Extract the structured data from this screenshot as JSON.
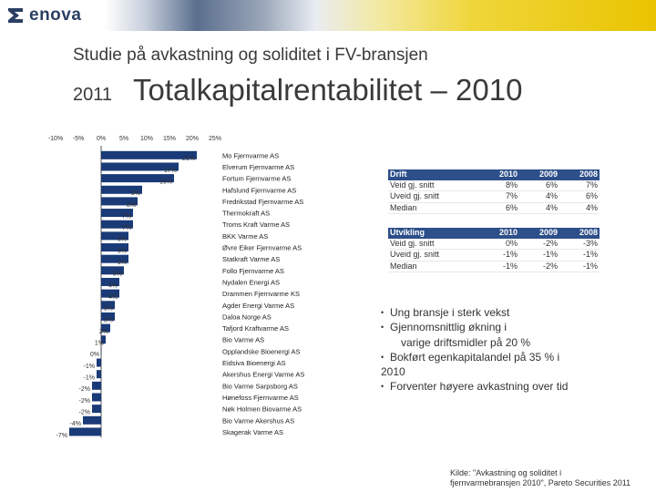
{
  "logo": {
    "text": "enova"
  },
  "colors": {
    "bar": "#1a3a78",
    "table_header": "#2d4f8a",
    "banner_gold": "#e9c400"
  },
  "subtitle": "Studie på avkastning og soliditet i FV-bransjen",
  "title": {
    "year": "2011",
    "main": "Totalkapitalrentabilitet – 2010"
  },
  "chart_data": {
    "type": "bar",
    "orientation": "horizontal",
    "title": "Totalkapitalrentabilitet – 2010",
    "xlim": [
      -10,
      25
    ],
    "xticks": [
      "-10%",
      "-5%",
      "0%",
      "5%",
      "10%",
      "15%",
      "20%",
      "25%"
    ],
    "tick_values": [
      -10,
      -5,
      0,
      5,
      10,
      15,
      20,
      25
    ],
    "categories": [
      "Mo Fjernvarme AS",
      "Elverum Fjernvarme AS",
      "Fortum Fjernvarme AS",
      "Hafslund Fjernvarme AS",
      "Fredrikstad Fjernvarme AS",
      "Thermokraft AS",
      "Troms Kraft Varme AS",
      "BKK Varme AS",
      "Øvre Eiker Fjernvarme AS",
      "Statkraft Varme AS",
      "Follo Fjernvarme AS",
      "Nydalen Energi AS",
      "Drammen Fjernvarme KS",
      "Agder Energi Varme AS",
      "Daloa Norge AS",
      "Tafjord Kraftvarme AS",
      "Bio Varme AS",
      "Opplandske Bioenergi AS",
      "Eidsiva Bioenergi AS",
      "Akershus Energi Varme AS",
      "Bio Varme Sarpsborg AS",
      "Hønefoss Fjernvarme AS",
      "Nøk Holmen Biovarme AS",
      "Bio Varme Akershus AS",
      "Skagerak Varme AS"
    ],
    "values": [
      21,
      17,
      16,
      9,
      8,
      7,
      7,
      6,
      6,
      6,
      5,
      4,
      4,
      3,
      3,
      2,
      1,
      0,
      -1,
      -1,
      -2,
      -2,
      -2,
      -4,
      -7
    ],
    "data_labels": [
      "21%",
      "17%",
      "16%",
      "9%",
      "8%",
      "7%",
      "7%",
      "6%",
      "6%",
      "6%",
      "5%",
      "4%",
      "4%",
      "3%",
      "3%",
      "2%",
      "1%",
      "0%",
      "-1%",
      "-1%",
      "-2%",
      "-2%",
      "-2%",
      "-4%",
      "-7%"
    ]
  },
  "tables": {
    "drift": {
      "header": [
        "Drift",
        "2010",
        "2009",
        "2008"
      ],
      "rows": [
        [
          "Veid gj. snitt",
          "8%",
          "6%",
          "7%"
        ],
        [
          "Uveid gj. snitt",
          "7%",
          "4%",
          "6%"
        ],
        [
          "Median",
          "6%",
          "4%",
          "4%"
        ]
      ]
    },
    "utvikling": {
      "header": [
        "Utvikling",
        "2010",
        "2009",
        "2008"
      ],
      "rows": [
        [
          "Veid gj. snitt",
          "0%",
          "-2%",
          "-3%"
        ],
        [
          "Uveid gj. snitt",
          "-1%",
          "-1%",
          "-1%"
        ],
        [
          "Median",
          "-1%",
          "-2%",
          "-1%"
        ]
      ]
    }
  },
  "bullets": [
    "Ung bransje i sterk vekst",
    "Gjennomsnittlig økning i",
    "varige driftsmidler på 20 %",
    "Bokført egenkapitalandel på 35 % i",
    "2010",
    "Forventer høyere avkastning over tid"
  ],
  "source": [
    "Kilde: \"Avkastning og soliditet i",
    "fjernvarmebransjen 2010\", Pareto Securities 2011"
  ]
}
